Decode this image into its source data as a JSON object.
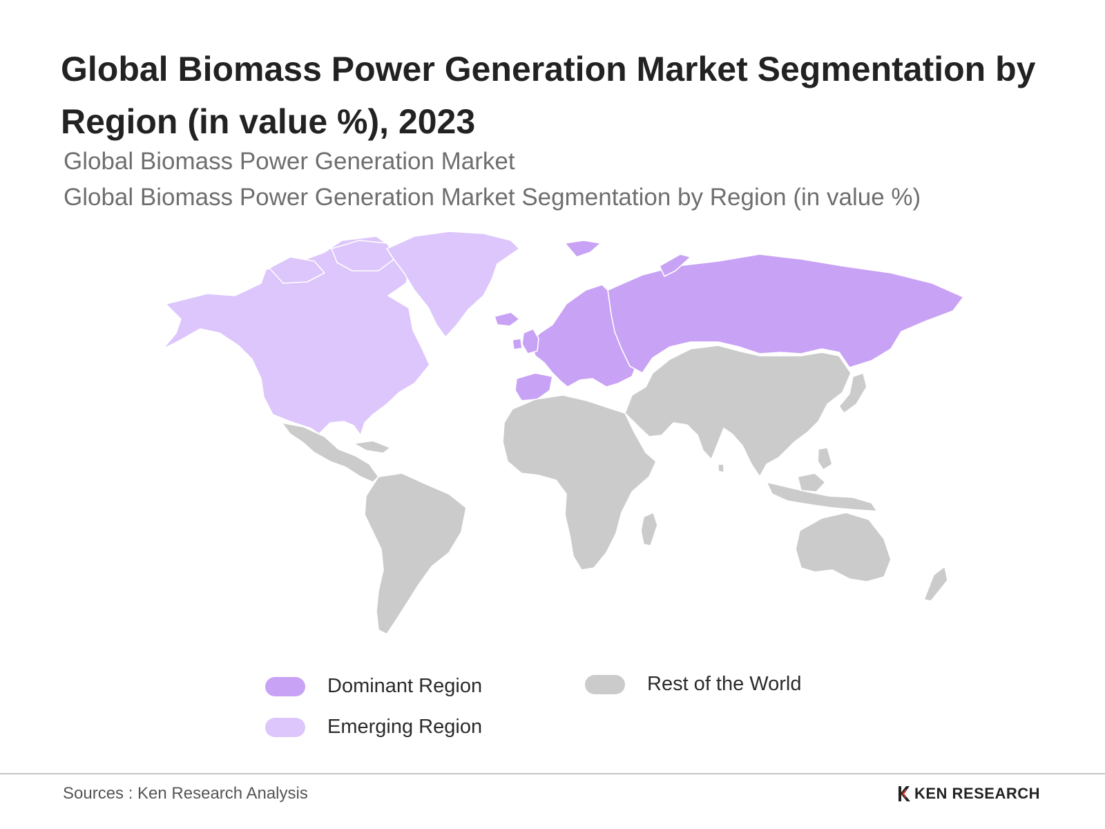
{
  "title": "Global Biomass Power Generation Market Segmentation by Region (in value %), 2023",
  "subtitle_1": "Global Biomass Power Generation Market",
  "subtitle_2": "Global Biomass Power Generation Market Segmentation by Region (in value %)",
  "colors": {
    "dominant": "#c8a2f5",
    "emerging": "#dcc6fb",
    "rest": "#cbcbcb"
  },
  "regions": {
    "dominant": [
      "Europe",
      "Russia"
    ],
    "emerging": [
      "North America",
      "Greenland"
    ],
    "rest": [
      "Central America",
      "South America",
      "Africa",
      "Middle East",
      "Asia",
      "Oceania"
    ]
  },
  "legend": {
    "dominant": "Dominant Region",
    "emerging": "Emerging Region",
    "rest": "Rest of the World"
  },
  "footer": {
    "source": "Sources : Ken Research Analysis",
    "logo_text": "KEN RESEARCH",
    "logo_icon": "ken-research-logo-icon"
  }
}
